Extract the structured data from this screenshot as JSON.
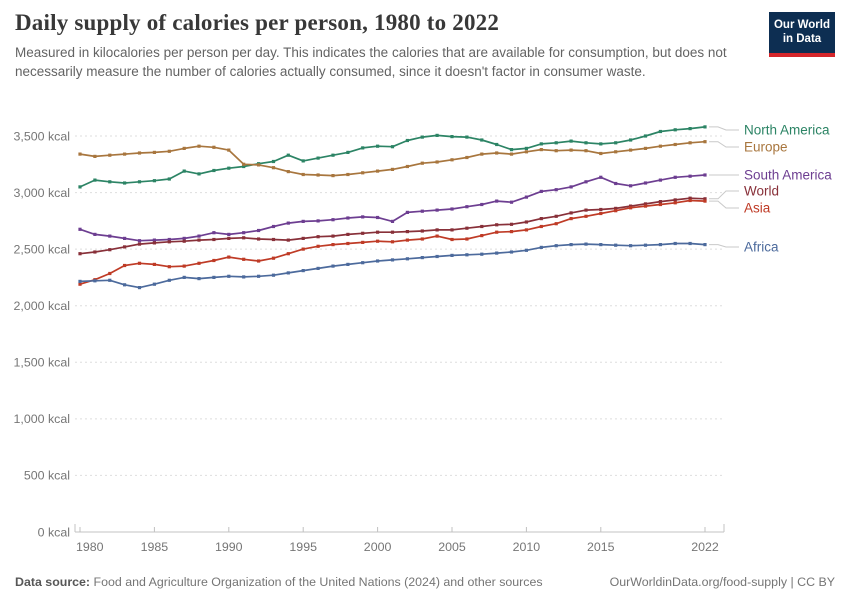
{
  "header": {
    "title": "Daily supply of calories per person, 1980 to 2022",
    "subtitle": "Measured in kilocalories per person per day. This indicates the calories that are available for consumption, but does not necessarily measure the number of calories actually consumed, since it doesn't factor in consumer waste.",
    "logo": {
      "line1": "Our World",
      "line2": "in Data",
      "bg_color": "#0D2E52",
      "stripe_color": "#D5262B"
    }
  },
  "footer": {
    "source_label": "Data source:",
    "source_text": " Food and Agriculture Organization of the United Nations (2024) and other sources",
    "credit": "OurWorldinData.org/food-supply | CC BY"
  },
  "chart_data": {
    "type": "line",
    "title": "Daily supply of calories per person, 1980 to 2022",
    "unit": "kcal",
    "grid": "horizontal-dashed",
    "legend_position": "right-of-line-ends",
    "xlim": [
      1980,
      2022
    ],
    "ylim": [
      0,
      3500
    ],
    "x": [
      1980,
      1981,
      1982,
      1983,
      1984,
      1985,
      1986,
      1987,
      1988,
      1989,
      1990,
      1991,
      1992,
      1993,
      1994,
      1995,
      1996,
      1997,
      1998,
      1999,
      2000,
      2001,
      2002,
      2003,
      2004,
      2005,
      2006,
      2007,
      2008,
      2009,
      2010,
      2011,
      2012,
      2013,
      2014,
      2015,
      2016,
      2017,
      2018,
      2019,
      2020,
      2021,
      2022
    ],
    "x_ticks": [
      1980,
      1985,
      1990,
      1995,
      2000,
      2005,
      2010,
      2015,
      2022
    ],
    "x_tick_labels": [
      "1980",
      "1985",
      "1990",
      "1995",
      "2000",
      "2005",
      "2010",
      "2015",
      "2022"
    ],
    "y_ticks": [
      0,
      500,
      1000,
      1500,
      2000,
      2500,
      3000,
      3500
    ],
    "y_tick_labels": [
      "0 kcal",
      "500 kcal",
      "1,000 kcal",
      "1,500 kcal",
      "2,000 kcal",
      "2,500 kcal",
      "3,000 kcal",
      "3,500 kcal"
    ],
    "series": [
      {
        "name": "North America",
        "color": "#2C8465",
        "label_y": 130,
        "values": [
          3050,
          3110,
          3095,
          3085,
          3095,
          3105,
          3120,
          3190,
          3165,
          3195,
          3215,
          3230,
          3255,
          3275,
          3330,
          3280,
          3305,
          3330,
          3355,
          3395,
          3410,
          3405,
          3460,
          3490,
          3505,
          3495,
          3490,
          3465,
          3425,
          3380,
          3390,
          3430,
          3440,
          3455,
          3440,
          3430,
          3440,
          3465,
          3500,
          3540,
          3555,
          3565,
          3580
        ]
      },
      {
        "name": "Europe",
        "color": "#A8763E",
        "label_y": 147,
        "values": [
          3340,
          3320,
          3330,
          3340,
          3350,
          3355,
          3365,
          3390,
          3410,
          3400,
          3375,
          3250,
          3245,
          3220,
          3185,
          3160,
          3155,
          3150,
          3160,
          3175,
          3190,
          3205,
          3230,
          3260,
          3270,
          3290,
          3310,
          3340,
          3350,
          3340,
          3360,
          3380,
          3370,
          3375,
          3370,
          3345,
          3360,
          3375,
          3390,
          3410,
          3425,
          3440,
          3450
        ]
      },
      {
        "name": "South America",
        "color": "#6D3E91",
        "label_y": 175,
        "values": [
          2675,
          2630,
          2615,
          2595,
          2575,
          2580,
          2585,
          2595,
          2615,
          2645,
          2630,
          2645,
          2665,
          2700,
          2730,
          2745,
          2750,
          2760,
          2775,
          2785,
          2780,
          2745,
          2825,
          2835,
          2845,
          2855,
          2875,
          2895,
          2925,
          2915,
          2960,
          3010,
          3025,
          3050,
          3095,
          3135,
          3080,
          3060,
          3085,
          3110,
          3135,
          3145,
          3155
        ]
      },
      {
        "name": "World",
        "color": "#883039",
        "label_y": 191,
        "values": [
          2460,
          2475,
          2495,
          2520,
          2545,
          2555,
          2565,
          2570,
          2580,
          2585,
          2595,
          2600,
          2590,
          2585,
          2580,
          2595,
          2610,
          2615,
          2630,
          2640,
          2650,
          2650,
          2655,
          2660,
          2670,
          2670,
          2685,
          2700,
          2715,
          2720,
          2740,
          2770,
          2790,
          2820,
          2845,
          2850,
          2860,
          2880,
          2900,
          2920,
          2935,
          2950,
          2945
        ]
      },
      {
        "name": "Asia",
        "color": "#BF3B26",
        "label_y": 208,
        "values": [
          2190,
          2230,
          2285,
          2355,
          2375,
          2365,
          2345,
          2350,
          2375,
          2400,
          2430,
          2410,
          2395,
          2420,
          2460,
          2500,
          2525,
          2540,
          2550,
          2560,
          2570,
          2565,
          2580,
          2590,
          2615,
          2585,
          2590,
          2620,
          2650,
          2655,
          2670,
          2700,
          2725,
          2770,
          2790,
          2815,
          2840,
          2865,
          2880,
          2895,
          2910,
          2930,
          2925
        ]
      },
      {
        "name": "Africa",
        "color": "#4C6A9C",
        "label_y": 247,
        "values": [
          2215,
          2220,
          2225,
          2185,
          2160,
          2190,
          2225,
          2250,
          2240,
          2250,
          2260,
          2255,
          2260,
          2270,
          2290,
          2310,
          2330,
          2350,
          2365,
          2380,
          2395,
          2405,
          2415,
          2425,
          2435,
          2445,
          2450,
          2455,
          2465,
          2475,
          2490,
          2515,
          2530,
          2540,
          2545,
          2540,
          2535,
          2530,
          2535,
          2540,
          2550,
          2550,
          2540
        ]
      }
    ]
  }
}
